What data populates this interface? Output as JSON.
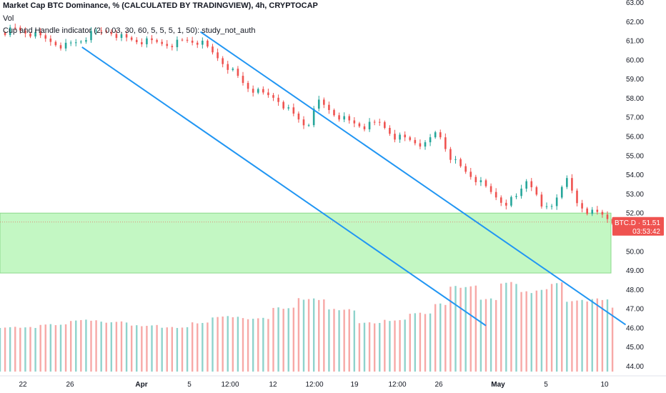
{
  "legend": {
    "title": "Market Cap BTC Dominance, % (CALCULATED BY TRADINGVIEW), 4h, CRYPTOCAP",
    "vol": "Vol",
    "study": "Cup and Handle indicator (2, 0.03, 30, 60, 5, 5, 5, 1, 50): study_not_auth"
  },
  "price_tag": {
    "symbol": "BTC.D",
    "value": "51.51",
    "countdown": "03:53:42"
  },
  "colors": {
    "up": "#26a69a",
    "down": "#ef5350",
    "vol_up": "#8fd3cc",
    "vol_down": "#f7a9a7",
    "channel": "#2196f3",
    "zone": "#b9f6b9",
    "tag": "#ef5350",
    "axis_text": "#131722",
    "grid": "#f0f3fa"
  },
  "chart_data": {
    "type": "candlestick",
    "title": "Market Cap BTC Dominance, % (CALCULATED BY TRADINGVIEW), 4h, CRYPTOCAP",
    "x_ticks": [
      "22",
      "26",
      "Apr",
      "5",
      "12:00",
      "12",
      "12:00",
      "19",
      "12:00",
      "26",
      "May",
      "5",
      "10"
    ],
    "bold_ticks": [
      "Apr",
      "May"
    ],
    "y_ticks": [
      "44.00",
      "45.00",
      "46.00",
      "47.00",
      "48.00",
      "49.00",
      "50.00",
      "51.00",
      "52.00",
      "53.00",
      "54.00",
      "55.00",
      "56.00",
      "57.00",
      "58.00",
      "59.00",
      "60.00",
      "61.00",
      "62.00",
      "63.00"
    ],
    "ylim": [
      43.7,
      63.15
    ],
    "x_range_days": [
      20.8,
      41.6
    ],
    "last_value": 51.51,
    "support_zone": [
      48.85,
      51.98
    ],
    "channel_upper": {
      "from": [
        27.4,
        61.45
      ],
      "to": [
        41.4,
        46.15
      ]
    },
    "channel_lower": {
      "from": [
        23.5,
        60.65
      ],
      "to": [
        36.8,
        46.1
      ]
    },
    "price_path": [
      [
        20.8,
        61.4
      ],
      [
        21.3,
        61.6
      ],
      [
        21.9,
        61.3
      ],
      [
        22.4,
        61.0
      ],
      [
        22.9,
        60.7
      ],
      [
        23.4,
        60.95
      ],
      [
        23.9,
        61.4
      ],
      [
        24.4,
        61.5
      ],
      [
        24.9,
        61.1
      ],
      [
        25.4,
        60.95
      ],
      [
        25.9,
        60.9
      ],
      [
        26.4,
        60.8
      ],
      [
        26.9,
        61.0
      ],
      [
        27.4,
        60.9
      ],
      [
        27.9,
        60.2
      ],
      [
        28.4,
        59.5
      ],
      [
        28.9,
        58.6
      ],
      [
        29.4,
        58.2
      ],
      [
        29.9,
        58.0
      ],
      [
        30.4,
        57.2
      ],
      [
        30.9,
        56.5
      ],
      [
        31.3,
        57.8
      ],
      [
        31.8,
        57.2
      ],
      [
        32.3,
        56.75
      ],
      [
        32.8,
        56.5
      ],
      [
        33.3,
        56.7
      ],
      [
        33.8,
        56.0
      ],
      [
        34.3,
        55.8
      ],
      [
        34.8,
        55.5
      ],
      [
        35.2,
        56.3
      ],
      [
        35.6,
        55.0
      ],
      [
        36.0,
        54.3
      ],
      [
        36.5,
        53.7
      ],
      [
        37.0,
        53.0
      ],
      [
        37.4,
        52.5
      ],
      [
        37.8,
        52.8
      ],
      [
        38.2,
        53.9
      ],
      [
        38.6,
        52.2
      ],
      [
        39.0,
        52.4
      ],
      [
        39.4,
        53.9
      ],
      [
        39.8,
        52.5
      ],
      [
        40.2,
        52.0
      ],
      [
        40.6,
        51.9
      ],
      [
        41.0,
        51.51
      ]
    ],
    "volume_profile": [
      [
        20.8,
        0.5
      ],
      [
        22.0,
        0.53
      ],
      [
        23.0,
        0.58
      ],
      [
        24.0,
        0.56
      ],
      [
        25.0,
        0.52
      ],
      [
        26.0,
        0.5
      ],
      [
        27.0,
        0.55
      ],
      [
        27.8,
        0.62
      ],
      [
        28.8,
        0.6
      ],
      [
        29.8,
        0.72
      ],
      [
        30.6,
        0.82
      ],
      [
        31.5,
        0.7
      ],
      [
        32.5,
        0.55
      ],
      [
        33.4,
        0.58
      ],
      [
        34.2,
        0.66
      ],
      [
        35.0,
        0.76
      ],
      [
        35.6,
        0.96
      ],
      [
        36.5,
        0.82
      ],
      [
        37.3,
        1.0
      ],
      [
        37.8,
        0.9
      ],
      [
        38.3,
        0.92
      ],
      [
        38.8,
        1.0
      ],
      [
        39.3,
        0.8
      ],
      [
        40.2,
        0.82
      ],
      [
        40.8,
        0.72
      ],
      [
        41.0,
        0.2
      ]
    ],
    "volume_max": 48.4,
    "volume_base": 43.7
  }
}
